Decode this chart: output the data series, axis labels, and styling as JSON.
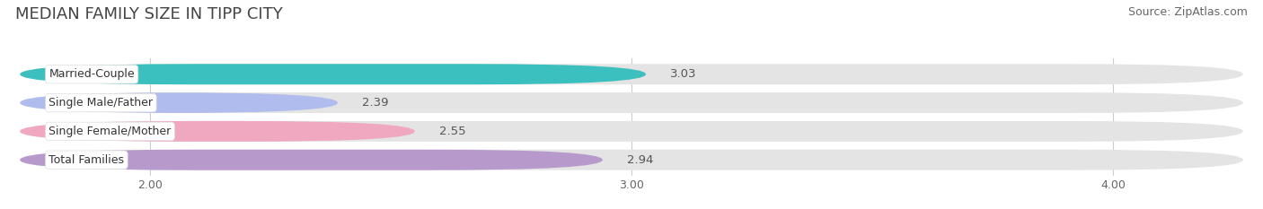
{
  "title": "MEDIAN FAMILY SIZE IN TIPP CITY",
  "source": "Source: ZipAtlas.com",
  "categories": [
    "Married-Couple",
    "Single Male/Father",
    "Single Female/Mother",
    "Total Families"
  ],
  "values": [
    3.03,
    2.39,
    2.55,
    2.94
  ],
  "bar_colors": [
    "#3bbfbf",
    "#b0bcee",
    "#f0a8c0",
    "#b899cc"
  ],
  "track_color": "#e4e4e4",
  "label_bg_color": "#ffffff",
  "xlim_min": 1.72,
  "xlim_max": 4.28,
  "data_min": 2.0,
  "data_max": 4.0,
  "xticks": [
    2.0,
    3.0,
    4.0
  ],
  "xtick_labels": [
    "2.00",
    "3.00",
    "4.00"
  ],
  "bar_height": 0.72,
  "title_fontsize": 13,
  "source_fontsize": 9,
  "label_fontsize": 9,
  "value_fontsize": 9.5,
  "tick_fontsize": 9,
  "background_color": "#ffffff"
}
